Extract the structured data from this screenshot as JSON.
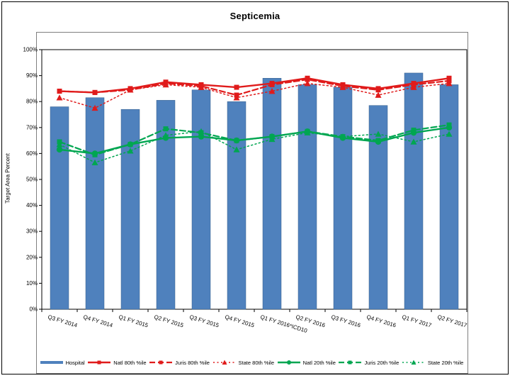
{
  "slide": {
    "title": "Septicemia"
  },
  "chart_data": {
    "type": "bar",
    "subtype": "bar-with-lines",
    "title": "Septicemia",
    "xlabel": "",
    "ylabel": "Target Area Percent",
    "ylim": [
      0,
      100
    ],
    "ytick_step": 10,
    "yticks": [
      "0%",
      "10%",
      "20%",
      "30%",
      "40%",
      "50%",
      "60%",
      "70%",
      "80%",
      "90%",
      "100%"
    ],
    "grid": false,
    "legend_position": "bottom",
    "categories": [
      "Q3 FY 2014",
      "Q4 FY 2014",
      "Q1 FY 2015",
      "Q2 FY 2015",
      "Q3 FY 2015",
      "Q4 FY 2015",
      "Q1 FY 2016*ICD10",
      "Q2 FY 2016",
      "Q3 FY 2016",
      "Q4 FY 2016",
      "Q1 FY 2017",
      "Q2 FY 2017"
    ],
    "series": [
      {
        "name": "Hospital",
        "type": "bar",
        "style": "solid",
        "marker": "none",
        "color": "#4F81BD",
        "values": [
          78,
          81.5,
          77,
          80.5,
          84.5,
          80,
          89,
          86.5,
          85.5,
          78.5,
          91,
          86.5
        ]
      },
      {
        "name": "Natl 80th %ile",
        "type": "line",
        "style": "solid",
        "marker": "square",
        "color": "#E01B1B",
        "values": [
          84,
          83.5,
          85,
          87.5,
          86.5,
          85.5,
          87,
          89,
          86.5,
          85,
          87,
          89
        ]
      },
      {
        "name": "Juris 80th %ile",
        "type": "line",
        "style": "dashed",
        "marker": "square",
        "color": "#E01B1B",
        "values": [
          84,
          83.5,
          84.5,
          87,
          86,
          82.5,
          86.5,
          88.5,
          86,
          84.5,
          86.5,
          88
        ]
      },
      {
        "name": "State 80th %ile",
        "type": "line",
        "style": "dotted",
        "marker": "triangle",
        "color": "#E01B1B",
        "values": [
          81.5,
          77.5,
          84.5,
          86.5,
          85.5,
          81.5,
          84,
          87,
          85.5,
          82.5,
          85.5,
          87
        ]
      },
      {
        "name": "Natl 20th %ile",
        "type": "line",
        "style": "solid",
        "marker": "circle",
        "color": "#00A651",
        "values": [
          61.5,
          60,
          63.5,
          66,
          66.5,
          65,
          66.5,
          68.5,
          66,
          64.5,
          68,
          70
        ]
      },
      {
        "name": "Juris 20th %ile",
        "type": "line",
        "style": "dashed",
        "marker": "square",
        "color": "#00A651",
        "values": [
          64.5,
          59.5,
          63.5,
          69.5,
          68,
          65,
          66.5,
          68.5,
          66.5,
          65,
          69,
          71
        ]
      },
      {
        "name": "State 20th %ile",
        "type": "line",
        "style": "dotted",
        "marker": "triangle",
        "color": "#00A651",
        "values": [
          63.5,
          56.5,
          61,
          67,
          68.5,
          61.5,
          65.5,
          68,
          66.5,
          67.5,
          64.5,
          67.5
        ]
      }
    ]
  }
}
